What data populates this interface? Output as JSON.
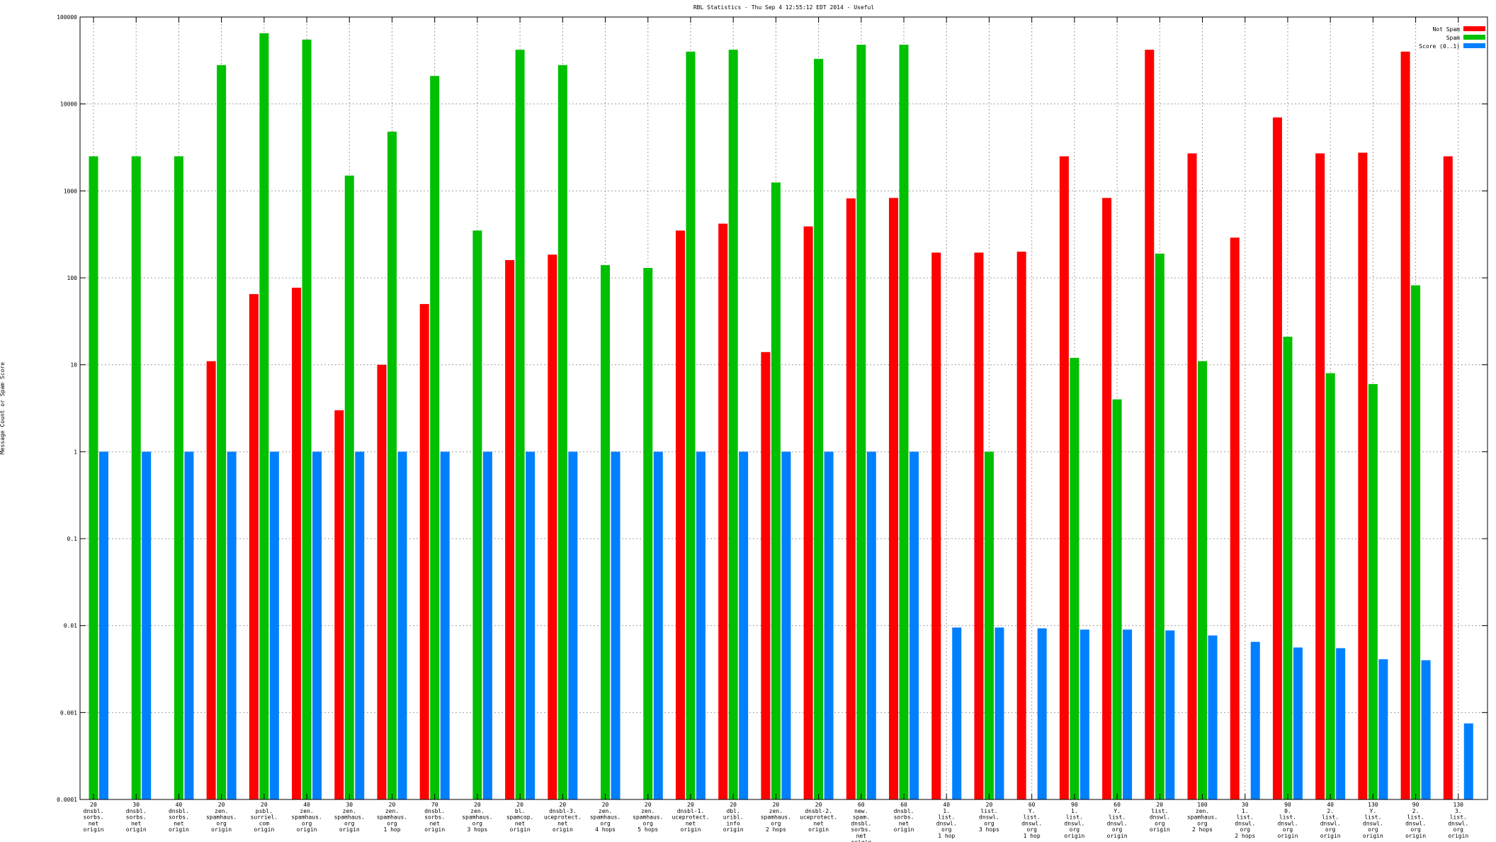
{
  "chart_data": {
    "type": "bar",
    "title": "RBL Statistics - Thu Sep  4 12:55:12 EDT 2014 - Useful",
    "xlabel": "",
    "ylabel": "Message Count or Spam Score",
    "yscale": "log",
    "ylim": [
      0.0001,
      100000
    ],
    "yticks": [
      "0.0001",
      "0.001",
      "0.01",
      "0.1",
      "1",
      "10",
      "100",
      "1000",
      "10000",
      "100000"
    ],
    "grid": true,
    "legend_position": "top-right",
    "categories": [
      [
        "20",
        "dnsbl.",
        "sorbs.",
        "net",
        "origin"
      ],
      [
        "30",
        "dnsbl.",
        "sorbs.",
        "net",
        "origin"
      ],
      [
        "40",
        "dnsbl.",
        "sorbs.",
        "net",
        "origin"
      ],
      [
        "20",
        "zen.",
        "spamhaus.",
        "org",
        "origin"
      ],
      [
        "20",
        "psbl.",
        "surriel.",
        "com",
        "origin"
      ],
      [
        "40",
        "zen.",
        "spamhaus.",
        "org",
        "origin"
      ],
      [
        "30",
        "zen.",
        "spamhaus.",
        "org",
        "origin"
      ],
      [
        "20",
        "zen.",
        "spamhaus.",
        "org",
        "1 hop"
      ],
      [
        "70",
        "dnsbl.",
        "sorbs.",
        "net",
        "origin"
      ],
      [
        "20",
        "zen.",
        "spamhaus.",
        "org",
        "3 hops"
      ],
      [
        "20",
        "bl.",
        "spamcop.",
        "net",
        "origin"
      ],
      [
        "20",
        "dnsbl-3.",
        "uceprotect.",
        "net",
        "origin"
      ],
      [
        "20",
        "zen.",
        "spamhaus.",
        "org",
        "4 hops"
      ],
      [
        "20",
        "zen.",
        "spamhaus.",
        "org",
        "5 hops"
      ],
      [
        "20",
        "dnsbl-1.",
        "uceprotect.",
        "net",
        "origin"
      ],
      [
        "20",
        "dbl.",
        "uribl.",
        "info",
        "origin"
      ],
      [
        "20",
        "zen.",
        "spamhaus.",
        "org",
        "2 hops"
      ],
      [
        "20",
        "dnsbl-2.",
        "uceprotect.",
        "net",
        "origin"
      ],
      [
        "60",
        "new.",
        "spam.",
        "dnsbl.",
        "sorbs.",
        "net",
        "origin"
      ],
      [
        "60",
        "dnsbl.",
        "sorbs.",
        "net",
        "origin"
      ],
      [
        "40",
        "1.",
        "list.",
        "dnswl.",
        "org",
        "1 hop"
      ],
      [
        "20",
        "list.",
        "dnswl.",
        "org",
        "3 hops"
      ],
      [
        "60",
        "Y.",
        "list.",
        "dnswl.",
        "org",
        "1 hop"
      ],
      [
        "90",
        "1.",
        "list.",
        "dnswl.",
        "org",
        "origin"
      ],
      [
        "60",
        "Y.",
        "list.",
        "dnswl.",
        "org",
        "origin"
      ],
      [
        "20",
        "list.",
        "dnswl.",
        "org",
        "origin"
      ],
      [
        "100",
        "zen.",
        "spamhaus.",
        "org",
        "2 hops"
      ],
      [
        "30",
        "1.",
        "list.",
        "dnswl.",
        "org",
        "2 hops"
      ],
      [
        "90",
        "0.",
        "list.",
        "dnswl.",
        "org",
        "origin"
      ],
      [
        "40",
        "2.",
        "list.",
        "dnswl.",
        "org",
        "origin"
      ],
      [
        "130",
        "Y.",
        "list.",
        "dnswl.",
        "org",
        "origin"
      ],
      [
        "90",
        "2.",
        "list.",
        "dnswl.",
        "org",
        "origin"
      ],
      [
        "130",
        "3.",
        "list.",
        "dnswl.",
        "org",
        "origin"
      ]
    ],
    "series": [
      {
        "name": "Not Spam",
        "color": "#ff0000",
        "values": [
          null,
          null,
          null,
          11,
          65,
          77,
          3,
          10,
          50,
          null,
          160,
          185,
          null,
          null,
          350,
          420,
          14,
          390,
          820,
          830,
          195,
          195,
          200,
          2500,
          830,
          42000,
          2700,
          290,
          7000,
          2700,
          2750,
          40000,
          2500
        ]
      },
      {
        "name": "Spam",
        "color": "#00c000",
        "values": [
          2500,
          2500,
          2500,
          28000,
          65000,
          55000,
          1500,
          4800,
          21000,
          350,
          42000,
          28000,
          140,
          130,
          40000,
          42000,
          1250,
          33000,
          48000,
          48000,
          null,
          1,
          null,
          12,
          4,
          190,
          11,
          null,
          21,
          8,
          6,
          82,
          null
        ]
      },
      {
        "name": "Score (0..1)",
        "color": "#0080ff",
        "values": [
          1,
          1,
          1,
          1,
          1,
          1,
          1,
          1,
          1,
          1,
          1,
          1,
          1,
          1,
          1,
          1,
          1,
          1,
          1,
          1,
          0.0095,
          0.0095,
          0.0093,
          0.009,
          0.009,
          0.0088,
          0.0077,
          0.0065,
          0.0056,
          0.0055,
          0.0041,
          0.004,
          0.00075
        ]
      }
    ]
  }
}
